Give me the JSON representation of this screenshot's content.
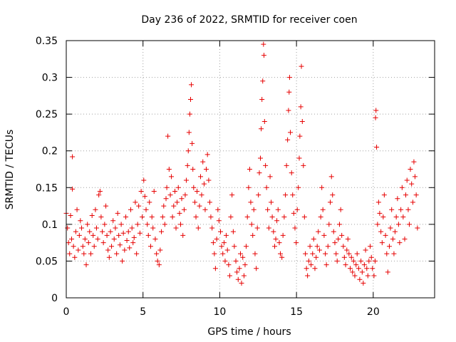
{
  "chart_data": {
    "type": "scatter",
    "title": "Day 236 of 2022, SRMTID for receiver coen",
    "xlabel": "GPS time / hours",
    "ylabel": "SRMTID / TECUs",
    "xlim": [
      0,
      24
    ],
    "ylim": [
      0,
      0.35
    ],
    "x_ticks": [
      0,
      5,
      10,
      15,
      20
    ],
    "x_tick_labels": [
      "0",
      "5",
      "10",
      "15",
      "20"
    ],
    "y_ticks": [
      0,
      0.05,
      0.1,
      0.15,
      0.2,
      0.25,
      0.3,
      0.35
    ],
    "y_tick_labels": [
      "0",
      "0.05",
      "0.1",
      "0.15",
      "0.2",
      "0.25",
      "0.3",
      "0.35"
    ],
    "grid": true,
    "marker": "+",
    "marker_color": "#e60000",
    "series": [
      {
        "name": "SRMTID",
        "points": [
          [
            0.0,
            0.115
          ],
          [
            0.08,
            0.095
          ],
          [
            0.15,
            0.075
          ],
          [
            0.22,
            0.06
          ],
          [
            0.28,
            0.112
          ],
          [
            0.35,
            0.08
          ],
          [
            0.4,
            0.148
          ],
          [
            0.4,
            0.192
          ],
          [
            0.47,
            0.07
          ],
          [
            0.55,
            0.055
          ],
          [
            0.62,
            0.09
          ],
          [
            0.7,
            0.12
          ],
          [
            0.78,
            0.065
          ],
          [
            0.85,
            0.085
          ],
          [
            0.92,
            0.105
          ],
          [
            1.0,
            0.095
          ],
          [
            1.08,
            0.07
          ],
          [
            1.15,
            0.06
          ],
          [
            1.22,
            0.08
          ],
          [
            1.3,
            0.045
          ],
          [
            1.38,
            0.1
          ],
          [
            1.45,
            0.075
          ],
          [
            1.52,
            0.09
          ],
          [
            1.6,
            0.06
          ],
          [
            1.68,
            0.112
          ],
          [
            1.75,
            0.085
          ],
          [
            1.82,
            0.07
          ],
          [
            1.9,
            0.12
          ],
          [
            1.97,
            0.095
          ],
          [
            2.05,
            0.08
          ],
          [
            2.12,
            0.14
          ],
          [
            2.2,
            0.145
          ],
          [
            2.27,
            0.11
          ],
          [
            2.35,
            0.09
          ],
          [
            2.42,
            0.075
          ],
          [
            2.5,
            0.1
          ],
          [
            2.58,
            0.125
          ],
          [
            2.65,
            0.085
          ],
          [
            2.72,
            0.065
          ],
          [
            2.8,
            0.055
          ],
          [
            2.88,
            0.09
          ],
          [
            2.95,
            0.07
          ],
          [
            3.05,
            0.105
          ],
          [
            3.12,
            0.08
          ],
          [
            3.2,
            0.095
          ],
          [
            3.28,
            0.06
          ],
          [
            3.35,
            0.115
          ],
          [
            3.42,
            0.085
          ],
          [
            3.5,
            0.072
          ],
          [
            3.58,
            0.1
          ],
          [
            3.65,
            0.05
          ],
          [
            3.72,
            0.088
          ],
          [
            3.8,
            0.065
          ],
          [
            3.88,
            0.11
          ],
          [
            3.95,
            0.078
          ],
          [
            4.05,
            0.09
          ],
          [
            4.12,
            0.068
          ],
          [
            4.2,
            0.12
          ],
          [
            4.28,
            0.095
          ],
          [
            4.35,
            0.075
          ],
          [
            4.42,
            0.082
          ],
          [
            4.5,
            0.13
          ],
          [
            4.58,
            0.06
          ],
          [
            4.65,
            0.1
          ],
          [
            4.72,
            0.125
          ],
          [
            4.8,
            0.088
          ],
          [
            4.88,
            0.145
          ],
          [
            4.95,
            0.11
          ],
          [
            5.05,
            0.16
          ],
          [
            5.12,
            0.138
          ],
          [
            5.2,
            0.12
          ],
          [
            5.28,
            0.1
          ],
          [
            5.35,
            0.085
          ],
          [
            5.42,
            0.13
          ],
          [
            5.5,
            0.07
          ],
          [
            5.58,
            0.11
          ],
          [
            5.65,
            0.095
          ],
          [
            5.72,
            0.145
          ],
          [
            5.8,
            0.08
          ],
          [
            5.88,
            0.06
          ],
          [
            5.95,
            0.05
          ],
          [
            6.05,
            0.045
          ],
          [
            6.12,
            0.065
          ],
          [
            6.2,
            0.09
          ],
          [
            6.28,
            0.11
          ],
          [
            6.35,
            0.125
          ],
          [
            6.42,
            0.1
          ],
          [
            6.5,
            0.135
          ],
          [
            6.55,
            0.15
          ],
          [
            6.62,
            0.22
          ],
          [
            6.7,
            0.175
          ],
          [
            6.78,
            0.14
          ],
          [
            6.85,
            0.165
          ],
          [
            6.92,
            0.11
          ],
          [
            7.0,
            0.125
          ],
          [
            7.08,
            0.145
          ],
          [
            7.15,
            0.095
          ],
          [
            7.22,
            0.13
          ],
          [
            7.3,
            0.15
          ],
          [
            7.38,
            0.115
          ],
          [
            7.45,
            0.1
          ],
          [
            7.52,
            0.135
          ],
          [
            7.6,
            0.085
          ],
          [
            7.68,
            0.12
          ],
          [
            7.75,
            0.14
          ],
          [
            7.82,
            0.16
          ],
          [
            7.9,
            0.18
          ],
          [
            7.95,
            0.2
          ],
          [
            8.0,
            0.225
          ],
          [
            8.05,
            0.25
          ],
          [
            8.1,
            0.27
          ],
          [
            8.15,
            0.29
          ],
          [
            8.2,
            0.21
          ],
          [
            8.25,
            0.175
          ],
          [
            8.3,
            0.15
          ],
          [
            8.38,
            0.13
          ],
          [
            8.45,
            0.11
          ],
          [
            8.52,
            0.145
          ],
          [
            8.6,
            0.095
          ],
          [
            8.68,
            0.125
          ],
          [
            8.75,
            0.165
          ],
          [
            8.82,
            0.14
          ],
          [
            8.9,
            0.185
          ],
          [
            8.98,
            0.155
          ],
          [
            9.05,
            0.12
          ],
          [
            9.12,
            0.175
          ],
          [
            9.2,
            0.195
          ],
          [
            9.28,
            0.16
          ],
          [
            9.35,
            0.13
          ],
          [
            9.42,
            0.11
          ],
          [
            9.5,
            0.095
          ],
          [
            9.58,
            0.075
          ],
          [
            9.65,
            0.06
          ],
          [
            9.72,
            0.04
          ],
          [
            9.8,
            0.08
          ],
          [
            9.88,
            0.12
          ],
          [
            9.95,
            0.105
          ],
          [
            10.05,
            0.09
          ],
          [
            10.12,
            0.07
          ],
          [
            10.2,
            0.06
          ],
          [
            10.28,
            0.075
          ],
          [
            10.35,
            0.05
          ],
          [
            10.42,
            0.085
          ],
          [
            10.5,
            0.065
          ],
          [
            10.58,
            0.045
          ],
          [
            10.65,
            0.03
          ],
          [
            10.72,
            0.11
          ],
          [
            10.8,
            0.14
          ],
          [
            10.88,
            0.09
          ],
          [
            10.95,
            0.07
          ],
          [
            11.05,
            0.05
          ],
          [
            11.12,
            0.035
          ],
          [
            11.2,
            0.025
          ],
          [
            11.28,
            0.04
          ],
          [
            11.35,
            0.06
          ],
          [
            11.42,
            0.02
          ],
          [
            11.5,
            0.055
          ],
          [
            11.58,
            0.03
          ],
          [
            11.65,
            0.045
          ],
          [
            11.72,
            0.07
          ],
          [
            11.8,
            0.11
          ],
          [
            11.88,
            0.15
          ],
          [
            11.95,
            0.175
          ],
          [
            12.02,
            0.13
          ],
          [
            12.08,
            0.1
          ],
          [
            12.15,
            0.085
          ],
          [
            12.22,
            0.12
          ],
          [
            12.3,
            0.06
          ],
          [
            12.38,
            0.04
          ],
          [
            12.45,
            0.095
          ],
          [
            12.52,
            0.14
          ],
          [
            12.58,
            0.17
          ],
          [
            12.65,
            0.19
          ],
          [
            12.7,
            0.23
          ],
          [
            12.75,
            0.27
          ],
          [
            12.8,
            0.295
          ],
          [
            12.85,
            0.345
          ],
          [
            12.88,
            0.33
          ],
          [
            12.92,
            0.24
          ],
          [
            12.98,
            0.18
          ],
          [
            13.05,
            0.15
          ],
          [
            13.12,
            0.12
          ],
          [
            13.2,
            0.095
          ],
          [
            13.28,
            0.165
          ],
          [
            13.35,
            0.13
          ],
          [
            13.42,
            0.11
          ],
          [
            13.5,
            0.09
          ],
          [
            13.58,
            0.07
          ],
          [
            13.65,
            0.08
          ],
          [
            13.72,
            0.105
          ],
          [
            13.8,
            0.12
          ],
          [
            13.88,
            0.075
          ],
          [
            13.95,
            0.06
          ],
          [
            14.05,
            0.055
          ],
          [
            14.12,
            0.085
          ],
          [
            14.2,
            0.11
          ],
          [
            14.28,
            0.14
          ],
          [
            14.35,
            0.18
          ],
          [
            14.42,
            0.215
          ],
          [
            14.48,
            0.255
          ],
          [
            14.52,
            0.28
          ],
          [
            14.55,
            0.3
          ],
          [
            14.6,
            0.225
          ],
          [
            14.68,
            0.17
          ],
          [
            14.75,
            0.14
          ],
          [
            14.82,
            0.115
          ],
          [
            14.9,
            0.095
          ],
          [
            14.98,
            0.075
          ],
          [
            15.05,
            0.12
          ],
          [
            15.12,
            0.15
          ],
          [
            15.18,
            0.19
          ],
          [
            15.22,
            0.22
          ],
          [
            15.28,
            0.26
          ],
          [
            15.32,
            0.315
          ],
          [
            15.38,
            0.24
          ],
          [
            15.45,
            0.18
          ],
          [
            15.52,
            0.11
          ],
          [
            15.58,
            0.06
          ],
          [
            15.65,
            0.04
          ],
          [
            15.72,
            0.03
          ],
          [
            15.8,
            0.05
          ],
          [
            15.88,
            0.07
          ],
          [
            15.95,
            0.045
          ],
          [
            16.05,
            0.06
          ],
          [
            16.12,
            0.08
          ],
          [
            16.2,
            0.04
          ],
          [
            16.28,
            0.055
          ],
          [
            16.35,
            0.07
          ],
          [
            16.42,
            0.09
          ],
          [
            16.5,
            0.065
          ],
          [
            16.58,
            0.11
          ],
          [
            16.65,
            0.15
          ],
          [
            16.72,
            0.12
          ],
          [
            16.8,
            0.085
          ],
          [
            16.88,
            0.06
          ],
          [
            16.95,
            0.045
          ],
          [
            17.05,
            0.07
          ],
          [
            17.12,
            0.1
          ],
          [
            17.2,
            0.13
          ],
          [
            17.28,
            0.165
          ],
          [
            17.35,
            0.14
          ],
          [
            17.42,
            0.09
          ],
          [
            17.5,
            0.075
          ],
          [
            17.58,
            0.06
          ],
          [
            17.65,
            0.05
          ],
          [
            17.72,
            0.08
          ],
          [
            17.8,
            0.1
          ],
          [
            17.88,
            0.12
          ],
          [
            17.95,
            0.085
          ],
          [
            18.05,
            0.07
          ],
          [
            18.12,
            0.055
          ],
          [
            18.2,
            0.045
          ],
          [
            18.28,
            0.065
          ],
          [
            18.35,
            0.08
          ],
          [
            18.42,
            0.06
          ],
          [
            18.5,
            0.04
          ],
          [
            18.58,
            0.055
          ],
          [
            18.65,
            0.035
          ],
          [
            18.72,
            0.05
          ],
          [
            18.8,
            0.03
          ],
          [
            18.88,
            0.045
          ],
          [
            18.95,
            0.06
          ],
          [
            19.05,
            0.04
          ],
          [
            19.12,
            0.025
          ],
          [
            19.2,
            0.05
          ],
          [
            19.28,
            0.035
          ],
          [
            19.35,
            0.02
          ],
          [
            19.42,
            0.045
          ],
          [
            19.5,
            0.065
          ],
          [
            19.58,
            0.04
          ],
          [
            19.65,
            0.03
          ],
          [
            19.72,
            0.05
          ],
          [
            19.8,
            0.07
          ],
          [
            19.88,
            0.055
          ],
          [
            19.95,
            0.04
          ],
          [
            20.05,
            0.03
          ],
          [
            20.12,
            0.05
          ],
          [
            20.15,
            0.245
          ],
          [
            20.18,
            0.255
          ],
          [
            20.22,
            0.205
          ],
          [
            20.28,
            0.1
          ],
          [
            20.35,
            0.13
          ],
          [
            20.42,
            0.115
          ],
          [
            20.5,
            0.09
          ],
          [
            20.58,
            0.075
          ],
          [
            20.65,
            0.11
          ],
          [
            20.72,
            0.14
          ],
          [
            20.8,
            0.085
          ],
          [
            20.88,
            0.06
          ],
          [
            20.95,
            0.035
          ],
          [
            21.05,
            0.07
          ],
          [
            21.12,
            0.095
          ],
          [
            21.2,
            0.12
          ],
          [
            21.28,
            0.08
          ],
          [
            21.35,
            0.06
          ],
          [
            21.42,
            0.09
          ],
          [
            21.5,
            0.11
          ],
          [
            21.58,
            0.135
          ],
          [
            21.65,
            0.1
          ],
          [
            21.72,
            0.075
          ],
          [
            21.8,
            0.12
          ],
          [
            21.88,
            0.15
          ],
          [
            21.95,
            0.11
          ],
          [
            22.05,
            0.08
          ],
          [
            22.12,
            0.14
          ],
          [
            22.2,
            0.16
          ],
          [
            22.28,
            0.12
          ],
          [
            22.35,
            0.1
          ],
          [
            22.42,
            0.175
          ],
          [
            22.5,
            0.155
          ],
          [
            22.58,
            0.13
          ],
          [
            22.65,
            0.185
          ],
          [
            22.72,
            0.165
          ],
          [
            22.8,
            0.14
          ],
          [
            22.88,
            0.095
          ]
        ]
      }
    ]
  }
}
